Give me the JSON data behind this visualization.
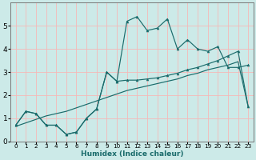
{
  "xlabel": "Humidex (Indice chaleur)",
  "ylabel": "",
  "background_color": "#cceae8",
  "line_color": "#1a6b6b",
  "grid_color": "#f5b8b8",
  "xlim": [
    -0.5,
    23.5
  ],
  "ylim": [
    0,
    6
  ],
  "xticks": [
    0,
    1,
    2,
    3,
    4,
    5,
    6,
    7,
    8,
    9,
    10,
    11,
    12,
    13,
    14,
    15,
    16,
    17,
    18,
    19,
    20,
    21,
    22,
    23
  ],
  "yticks": [
    0,
    1,
    2,
    3,
    4,
    5
  ],
  "line1_x": [
    0,
    1,
    2,
    3,
    4,
    5,
    6,
    7,
    8,
    9,
    10,
    11,
    12,
    13,
    14,
    15,
    16,
    17,
    18,
    19,
    20,
    21,
    22,
    23
  ],
  "line1_y": [
    0.7,
    1.3,
    1.2,
    0.7,
    0.7,
    0.3,
    0.4,
    1.0,
    1.4,
    3.0,
    2.6,
    5.2,
    5.4,
    4.8,
    4.9,
    5.3,
    4.0,
    4.4,
    4.0,
    3.9,
    4.1,
    3.2,
    3.2,
    3.3
  ],
  "line2_x": [
    0,
    1,
    2,
    3,
    4,
    5,
    6,
    7,
    8,
    9,
    10,
    11,
    12,
    13,
    14,
    15,
    16,
    17,
    18,
    19,
    20,
    21,
    22,
    23
  ],
  "line2_y": [
    0.7,
    1.3,
    1.2,
    0.7,
    0.7,
    0.3,
    0.4,
    1.0,
    1.4,
    3.0,
    2.6,
    2.65,
    2.65,
    2.7,
    2.75,
    2.85,
    2.95,
    3.1,
    3.2,
    3.35,
    3.5,
    3.7,
    3.9,
    1.5
  ],
  "line3_x": [
    0,
    1,
    2,
    3,
    4,
    5,
    6,
    7,
    8,
    9,
    10,
    11,
    12,
    13,
    14,
    15,
    16,
    17,
    18,
    19,
    20,
    21,
    22,
    23
  ],
  "line3_y": [
    0.65,
    0.8,
    0.95,
    1.1,
    1.2,
    1.3,
    1.45,
    1.6,
    1.75,
    1.9,
    2.05,
    2.2,
    2.3,
    2.4,
    2.5,
    2.6,
    2.7,
    2.85,
    2.95,
    3.1,
    3.2,
    3.3,
    3.45,
    1.5
  ]
}
